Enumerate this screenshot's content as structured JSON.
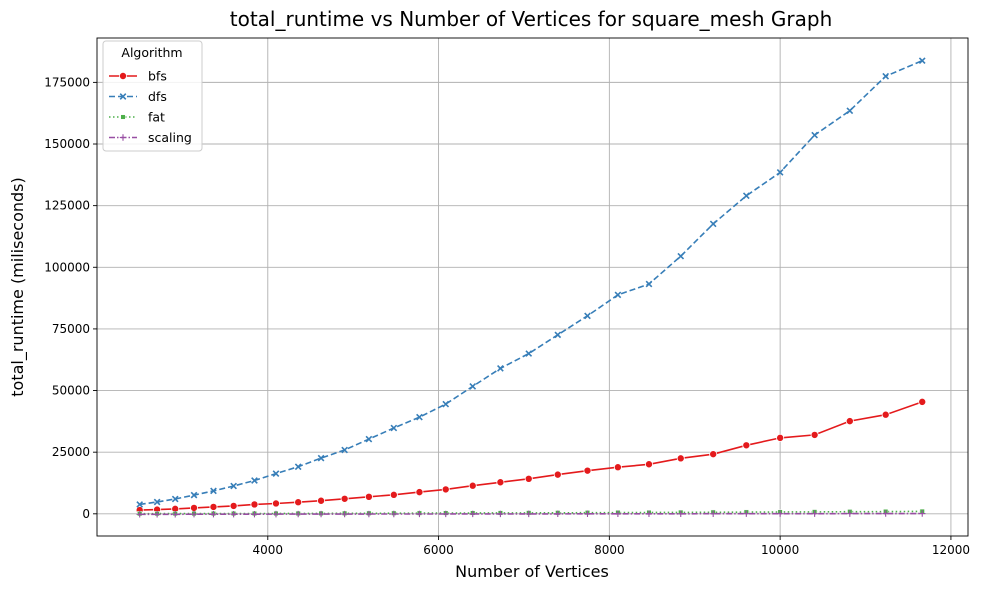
{
  "chart_data": {
    "type": "line",
    "title": "total_runtime vs Number of Vertices for square_mesh Graph",
    "xlabel": "Number of Vertices",
    "ylabel": "total_runtime (miliseconds)",
    "xlim": [
      2000,
      12200
    ],
    "ylim": [
      -9000,
      193000
    ],
    "xticks": [
      4000,
      6000,
      8000,
      10000,
      12000
    ],
    "yticks": [
      0,
      25000,
      50000,
      75000,
      100000,
      125000,
      150000,
      175000
    ],
    "grid": true,
    "legend": {
      "title": "Algorithm",
      "placement": "top-left"
    },
    "x": [
      2500,
      2704,
      2916,
      3136,
      3364,
      3600,
      3844,
      4096,
      4356,
      4624,
      4900,
      5184,
      5476,
      5776,
      6084,
      6400,
      6724,
      7056,
      7396,
      7744,
      8100,
      8464,
      8836,
      9216,
      9604,
      10000,
      10404,
      10816,
      11236,
      11664
    ],
    "series": [
      {
        "name": "bfs",
        "color": "#e41a1c",
        "dash": "",
        "marker": "circle",
        "values": [
          1500,
          1700,
          2000,
          2400,
          2800,
          3200,
          3800,
          4200,
          4700,
          5300,
          6100,
          6900,
          7700,
          8800,
          9900,
          11400,
          12800,
          14200,
          15900,
          17500,
          18900,
          20100,
          22500,
          24200,
          27800,
          30800,
          32000,
          37600,
          40200,
          45400
        ]
      },
      {
        "name": "dfs",
        "color": "#377eb8",
        "dash": "6,3",
        "marker": "x",
        "values": [
          3800,
          4800,
          6000,
          7600,
          9300,
          11300,
          13500,
          16300,
          19100,
          22600,
          25900,
          30300,
          34800,
          39200,
          44500,
          51700,
          59000,
          65000,
          72600,
          80300,
          88800,
          93200,
          104500,
          117600,
          129000,
          138500,
          153600,
          163500,
          177500,
          183800
        ]
      },
      {
        "name": "fat",
        "color": "#4daf4a",
        "dash": "1.5,2.5",
        "marker": "square",
        "values": [
          60,
          70,
          80,
          90,
          100,
          110,
          130,
          140,
          160,
          180,
          200,
          220,
          240,
          270,
          300,
          330,
          360,
          390,
          420,
          460,
          500,
          540,
          580,
          630,
          680,
          730,
          790,
          850,
          910,
          980
        ]
      },
      {
        "name": "scaling",
        "color": "#984ea3",
        "dash": "6,2,1.5,2",
        "marker": "plus",
        "values": [
          -200,
          -190,
          -180,
          -170,
          -160,
          -150,
          -140,
          -130,
          -120,
          -110,
          -100,
          -90,
          -80,
          -70,
          -60,
          -50,
          -40,
          -30,
          -20,
          -10,
          0,
          10,
          20,
          30,
          40,
          50,
          60,
          80,
          100,
          120
        ]
      }
    ]
  }
}
